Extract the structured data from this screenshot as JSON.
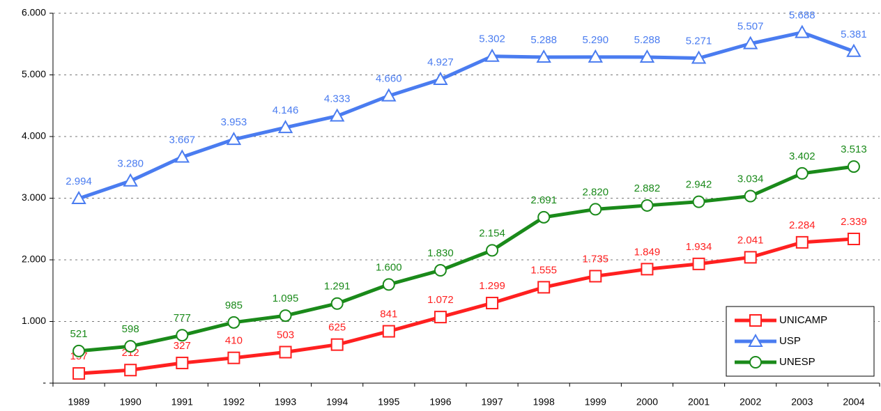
{
  "chart_data": {
    "type": "line",
    "categories": [
      "1989",
      "1990",
      "1991",
      "1992",
      "1993",
      "1994",
      "1995",
      "1996",
      "1997",
      "1998",
      "1999",
      "2000",
      "2001",
      "2002",
      "2003",
      "2004"
    ],
    "series": [
      {
        "name": "UNICAMP",
        "color": "#ff2020",
        "marker": "square",
        "values": [
          157,
          212,
          327,
          410,
          503,
          625,
          841,
          1072,
          1299,
          1555,
          1735,
          1849,
          1934,
          2041,
          2284,
          2339
        ],
        "value_labels": [
          "157",
          "212",
          "327",
          "410",
          "503",
          "625",
          "841",
          "1.072",
          "1.299",
          "1.555",
          "1.735",
          "1.849",
          "1.934",
          "2.041",
          "2.284",
          "2.339"
        ]
      },
      {
        "name": "USP",
        "color": "#4a7cf0",
        "marker": "triangle",
        "values": [
          2994,
          3280,
          3667,
          3953,
          4146,
          4333,
          4660,
          4927,
          5302,
          5288,
          5290,
          5288,
          5271,
          5507,
          5688,
          5381
        ],
        "value_labels": [
          "2.994",
          "3.280",
          "3.667",
          "3.953",
          "4.146",
          "4.333",
          "4.660",
          "4.927",
          "5.302",
          "5.288",
          "5.290",
          "5.288",
          "5.271",
          "5.507",
          "5.688",
          "5.381"
        ]
      },
      {
        "name": "UNESP",
        "color": "#1a8a1a",
        "marker": "circle",
        "values": [
          521,
          598,
          777,
          985,
          1095,
          1291,
          1600,
          1830,
          2154,
          2691,
          2820,
          2882,
          2942,
          3034,
          3402,
          3513
        ],
        "value_labels": [
          "521",
          "598",
          "777",
          "985",
          "1.095",
          "1.291",
          "1.600",
          "1.830",
          "2.154",
          "2.691",
          "2.820",
          "2.882",
          "2.942",
          "3.034",
          "3.402",
          "3.513"
        ]
      }
    ],
    "ylim": [
      0,
      6000
    ],
    "yticks": [
      {
        "value": 0,
        "label": "-"
      },
      {
        "value": 1000,
        "label": "1.000"
      },
      {
        "value": 2000,
        "label": "2.000"
      },
      {
        "value": 3000,
        "label": "3.000"
      },
      {
        "value": 4000,
        "label": "4.000"
      },
      {
        "value": 5000,
        "label": "5.000"
      },
      {
        "value": 6000,
        "label": "6.000"
      }
    ],
    "grid": true,
    "legend": "lower right"
  }
}
